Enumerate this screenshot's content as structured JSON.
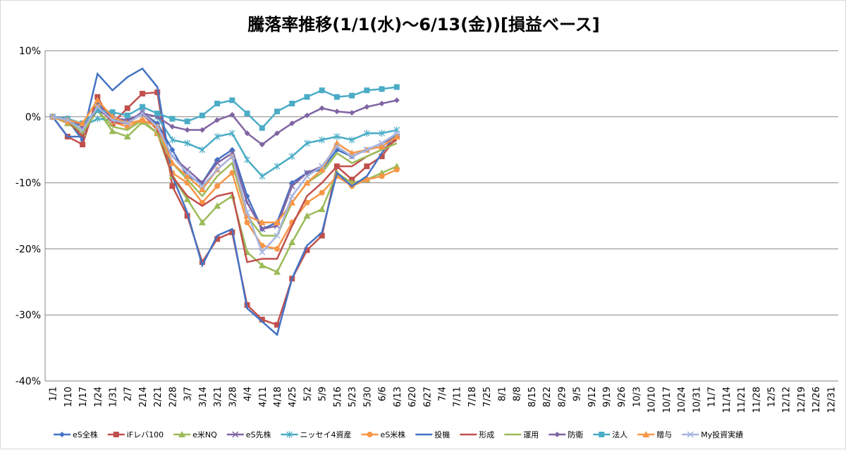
{
  "chart_data": {
    "type": "line",
    "title": "騰落率推移(1/1(水)～6/13(金))[損益ベース]",
    "ylim": [
      -40,
      10
    ],
    "yticks": [
      10,
      0,
      -10,
      -20,
      -30,
      -40
    ],
    "ytick_labels": [
      "10%",
      "0%",
      "-10%",
      "-20%",
      "-30%",
      "-40%"
    ],
    "grid": "horizontal",
    "legend_position": "bottom",
    "x_labels": [
      "1/1",
      "1/10",
      "1/17",
      "1/24",
      "1/31",
      "2/7",
      "2/14",
      "2/21",
      "2/28",
      "3/7",
      "3/14",
      "3/21",
      "3/28",
      "4/4",
      "4/11",
      "4/18",
      "4/25",
      "5/2",
      "5/9",
      "5/16",
      "5/23",
      "5/30",
      "6/6",
      "6/13",
      "6/20",
      "6/27",
      "7/4",
      "7/11",
      "7/18",
      "7/25",
      "8/1",
      "8/8",
      "8/15",
      "8/22",
      "8/29",
      "9/5",
      "9/12",
      "9/19",
      "9/26",
      "10/3",
      "10/10",
      "10/17",
      "10/24",
      "10/31",
      "11/7",
      "11/14",
      "11/21",
      "11/28",
      "12/5",
      "12/12",
      "12/19",
      "12/26",
      "12/31"
    ],
    "series": [
      {
        "name": "eS全株",
        "color": "#4472c4",
        "marker": "diamond",
        "values": [
          0,
          -0.5,
          -3.5,
          2,
          0,
          -1,
          0.5,
          -1,
          -5,
          -9,
          -10,
          -6.5,
          -5,
          -12,
          -17,
          -16,
          -10,
          -8.5,
          -8,
          -5,
          -6,
          -5,
          -4.5,
          -3
        ]
      },
      {
        "name": "iFレバ100",
        "color": "#c0504d",
        "marker": "square",
        "values": [
          0,
          -3,
          -4.2,
          3,
          -1,
          1.3,
          3.5,
          3.7,
          -10.5,
          -15,
          -22,
          -18.5,
          -17.5,
          -28.5,
          -30.7,
          -31.5,
          -24.5,
          -20.2,
          -18,
          -7.5,
          -9.5,
          -7.5,
          -6,
          -3
        ]
      },
      {
        "name": "e米NQ",
        "color": "#9bbb59",
        "marker": "triangle",
        "values": [
          0,
          -1,
          -2.5,
          1,
          -2.2,
          -3,
          -0.8,
          -2.5,
          -9,
          -12.5,
          -16,
          -13.5,
          -12,
          -20.5,
          -22.5,
          -23.5,
          -19,
          -15,
          -14,
          -8.5,
          -10,
          -9.5,
          -8.5,
          -7.5
        ]
      },
      {
        "name": "eS先株",
        "color": "#8064a2",
        "marker": "x",
        "values": [
          0,
          -0.5,
          -2,
          1.5,
          0,
          -1,
          0.8,
          -1.5,
          -6,
          -8,
          -10,
          -7,
          -5.5,
          -13,
          -17,
          -16.5,
          -10.5,
          -8.5,
          -7.5,
          -4.5,
          -6,
          -5,
          -4,
          -3
        ]
      },
      {
        "name": "ニッセイ4資産",
        "color": "#4bacc6",
        "marker": "star",
        "values": [
          0,
          -0.5,
          -1.5,
          -0.3,
          -0.5,
          -0.5,
          0.5,
          0,
          -3.5,
          -4,
          -5,
          -3,
          -2.5,
          -6.5,
          -9,
          -7.5,
          -6,
          -4,
          -3.5,
          -3,
          -3.5,
          -2.5,
          -2.5,
          -2
        ]
      },
      {
        "name": "eS米株",
        "color": "#f79646",
        "marker": "circle",
        "values": [
          0,
          -0.8,
          -2.5,
          1.5,
          -0.8,
          -1.5,
          -0.5,
          -2.5,
          -8.5,
          -10,
          -13,
          -10.5,
          -8.5,
          -16,
          -19.5,
          -20,
          -16,
          -13,
          -11.5,
          -9,
          -10.5,
          -9.5,
          -9,
          -8
        ]
      },
      {
        "name": "投機",
        "color": "#4472c4",
        "marker": "none",
        "values": [
          0,
          -3,
          -3,
          6.5,
          4,
          6,
          7.3,
          4.5,
          -9,
          -14.5,
          -22.5,
          -18,
          -17,
          -29,
          -31,
          -33,
          -24.5,
          -19.5,
          -17.5,
          -8.5,
          -10.5,
          -9,
          -5.5,
          -2.5
        ]
      },
      {
        "name": "形成",
        "color": "#c0504d",
        "marker": "none",
        "values": [
          0,
          -0.5,
          -3,
          1.5,
          -0.8,
          -1,
          0.5,
          -2,
          -9,
          -12,
          -13.5,
          -12,
          -11.5,
          -22,
          -21.5,
          -21.5,
          -16.5,
          -12,
          -10,
          -7.5,
          -7.5,
          -6,
          -5,
          -3.5
        ]
      },
      {
        "name": "運用",
        "color": "#9bbb59",
        "marker": "none",
        "values": [
          0,
          -0.5,
          -2.5,
          1,
          -1.5,
          -2,
          -0.5,
          -2.5,
          -7,
          -9.5,
          -12,
          -9,
          -7,
          -15,
          -18,
          -18,
          -13,
          -10,
          -8.5,
          -5.5,
          -7,
          -6,
          -5,
          -4
        ]
      },
      {
        "name": "防衛",
        "color": "#8064a2",
        "marker": "diamond",
        "values": [
          0,
          -0.2,
          -1.5,
          1,
          -0.2,
          -0.5,
          0.5,
          0,
          -1.5,
          -2,
          -2,
          -0.5,
          0.3,
          -2.5,
          -4.2,
          -2.5,
          -1,
          0.2,
          1.3,
          0.8,
          0.6,
          1.5,
          2,
          2.5
        ]
      },
      {
        "name": "法人",
        "color": "#4bacc6",
        "marker": "square",
        "values": [
          0,
          -0.3,
          -1,
          1,
          0.7,
          0.2,
          1.5,
          0.5,
          -0.3,
          -0.7,
          0.2,
          2,
          2.5,
          0.5,
          -1.7,
          0.8,
          2,
          3,
          4,
          3,
          3.2,
          4,
          4.2,
          4.5
        ]
      },
      {
        "name": "贈与",
        "color": "#f79646",
        "marker": "triangle",
        "values": [
          0,
          -0.5,
          -1,
          2.5,
          0,
          -1,
          -0.5,
          -1.5,
          -7,
          -9,
          -11,
          -8,
          -6,
          -15,
          -16,
          -16,
          -13,
          -10,
          -8,
          -4,
          -5.5,
          -5,
          -4.5,
          -3
        ]
      },
      {
        "name": "My投資実績",
        "color": "#a5b4e0",
        "marker": "x",
        "values": [
          0,
          -0.5,
          -2,
          1.5,
          -0.5,
          -1,
          0.5,
          -1.5,
          -6,
          -8.5,
          -10.5,
          -8,
          -6,
          -14.5,
          -20.5,
          -18,
          -12,
          -9,
          -7.5,
          -4.5,
          -6,
          -5,
          -4,
          -2.5
        ]
      }
    ]
  }
}
